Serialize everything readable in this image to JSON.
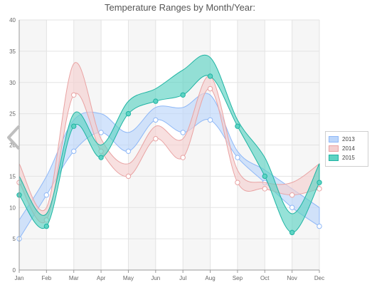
{
  "chart_data": {
    "type": "area",
    "title": "Temperature Ranges by Month/Year:",
    "categories": [
      "Jan",
      "Feb",
      "Mar",
      "Apr",
      "May",
      "Jun",
      "Jul",
      "Aug",
      "Sep",
      "Oct",
      "Nov",
      "Dec"
    ],
    "ylim": [
      0,
      40
    ],
    "yticks": [
      "0",
      "5",
      "10",
      "15",
      "20",
      "25",
      "30",
      "35",
      "40"
    ],
    "grid": true,
    "legend_position": "right",
    "series": [
      {
        "name": "2013",
        "color": "#8fb8f7",
        "fill": "#bcd6fb",
        "low": [
          5,
          12,
          19,
          22,
          19,
          24,
          22,
          24,
          18,
          14,
          10,
          7
        ],
        "high": [
          8,
          15,
          24,
          25,
          22,
          26,
          26,
          28,
          19,
          16,
          13,
          10
        ]
      },
      {
        "name": "2014",
        "color": "#e9a3a3",
        "fill": "#f4cfcf",
        "low": [
          14,
          8,
          28,
          19,
          15,
          21,
          18,
          29,
          14,
          13,
          12,
          13
        ],
        "high": [
          17,
          10,
          33,
          21,
          17,
          23,
          21,
          31,
          16,
          14,
          14,
          17
        ]
      },
      {
        "name": "2015",
        "color": "#1fb4a3",
        "fill": "#5ed3c3",
        "low": [
          12,
          7,
          23,
          18,
          25,
          27,
          28,
          31,
          23,
          15,
          6,
          14
        ],
        "high": [
          15,
          9,
          25,
          20,
          27,
          29,
          32,
          34,
          24,
          18,
          9,
          17
        ]
      }
    ]
  },
  "nav": {
    "prev_icon": "chevron-left-icon"
  }
}
